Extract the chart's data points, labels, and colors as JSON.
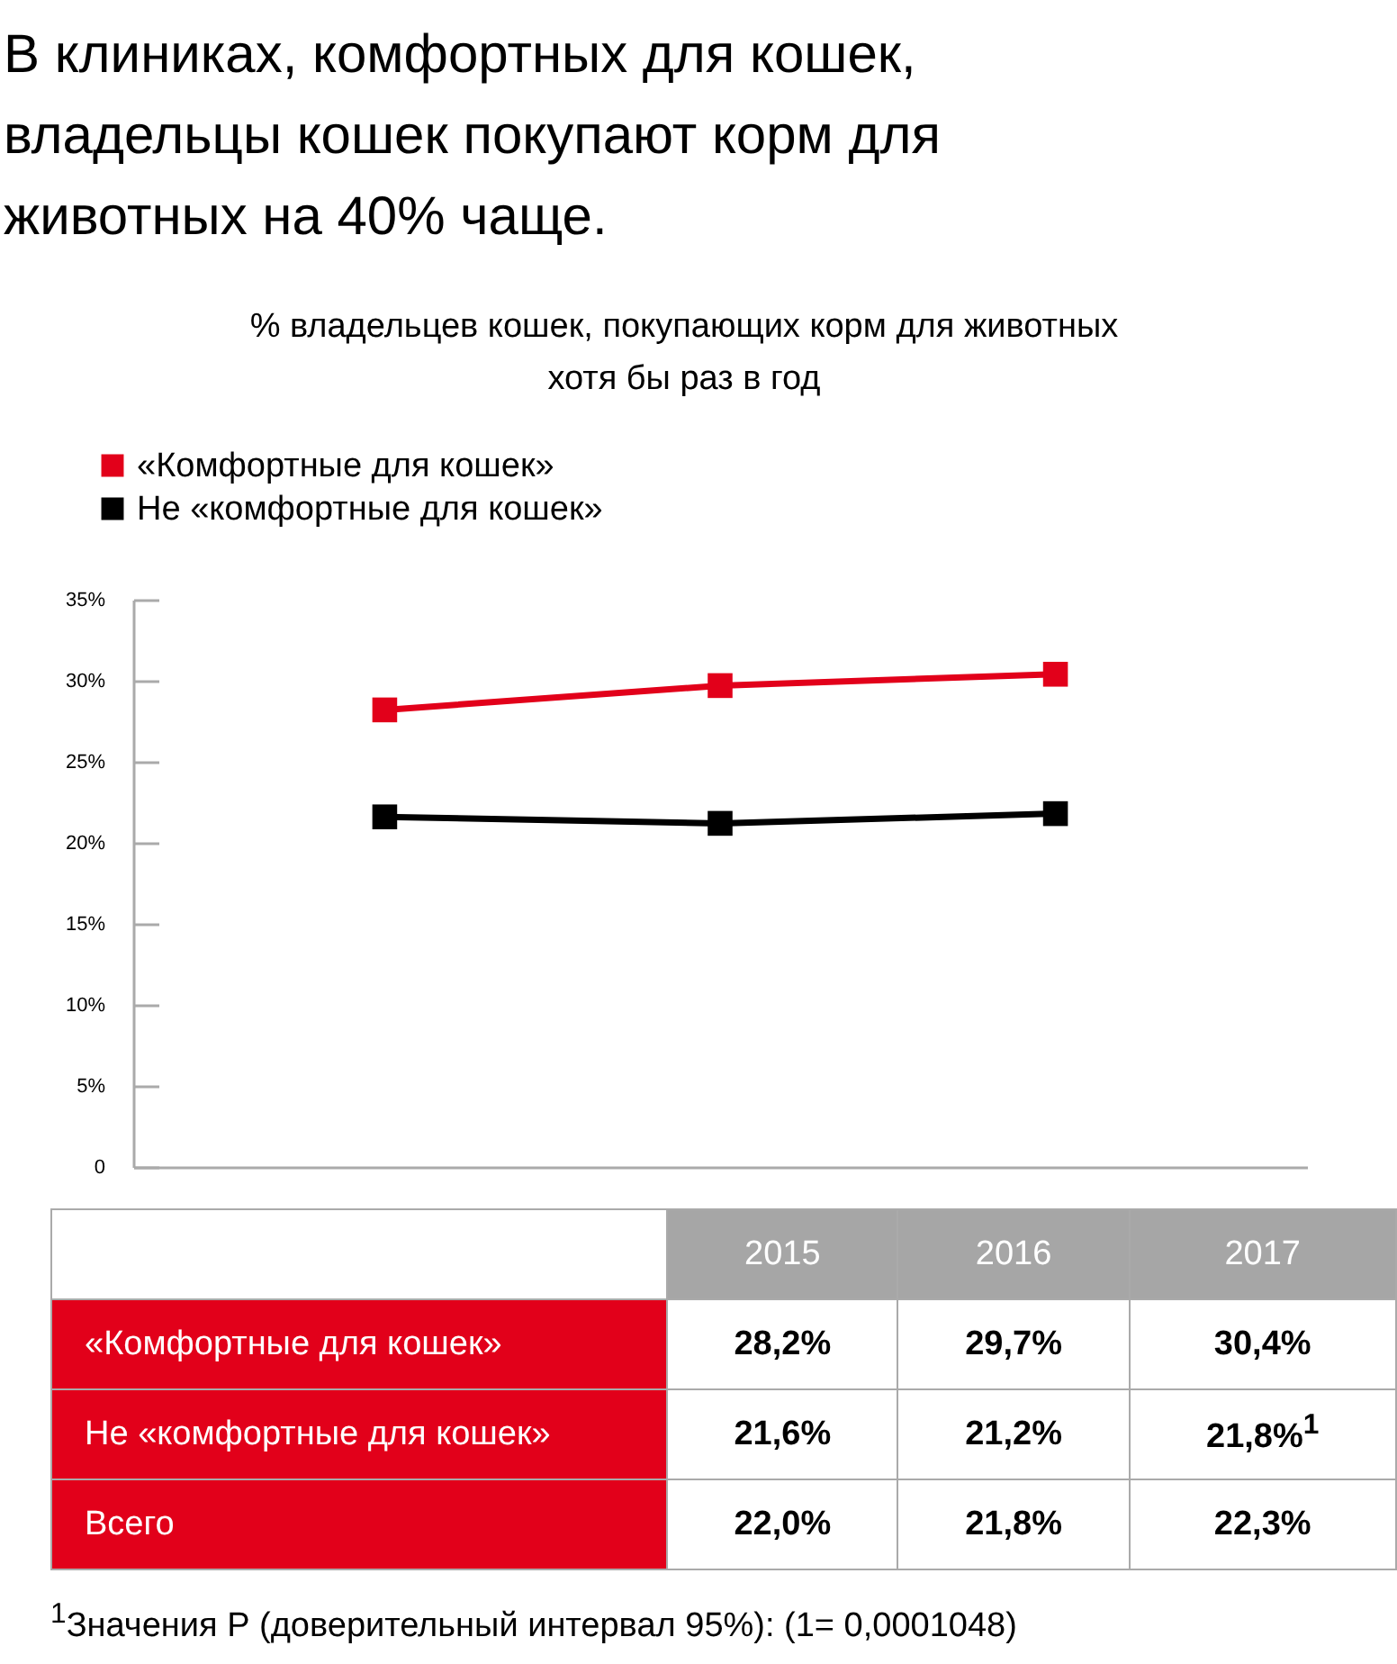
{
  "chart_data": {
    "type": "line",
    "title": "В клиниках, комфортных для кошек, владельцы кошек покупают корм для животных на 40% чаще.",
    "subtitle": "% владельцев кошек, покупающих корм для животных хотя бы раз в год",
    "categories": [
      null,
      null,
      null
    ],
    "series": [
      {
        "name": "«Комфортные для кошек»",
        "color": "#e2001a",
        "values": [
          28.2,
          29.7,
          30.4
        ]
      },
      {
        "name": "Не «комфортные для кошек»",
        "color": "#000000",
        "values": [
          21.6,
          21.2,
          21.8
        ]
      }
    ],
    "ylim": [
      0,
      35
    ],
    "yticks": [
      0,
      {
        "value": 5,
        "label": "5%"
      },
      {
        "value": 10,
        "label": "10%"
      },
      {
        "value": 15,
        "label": "15%"
      },
      {
        "value": 20,
        "label": "20%"
      },
      {
        "value": 25,
        "label": "25%"
      },
      {
        "value": 30,
        "label": "30%"
      },
      {
        "value": 35,
        "label": "35%"
      }
    ],
    "tick_labels": "y",
    "marker": "square",
    "line_style": "solid",
    "legend": "top left",
    "grid": false,
    "annotations": [
      "2015",
      "2016",
      "2017",
      "28,2%",
      "29,7%",
      "30,4%",
      "21,6%",
      "21,2%",
      "21,8%$^{1}$",
      "Всего",
      "22,0%",
      "21,8%",
      "22,3%",
      "$^{1}$Значения Р (доверительный интервал 95%): (1= 0,0001048)"
    ]
  }
}
